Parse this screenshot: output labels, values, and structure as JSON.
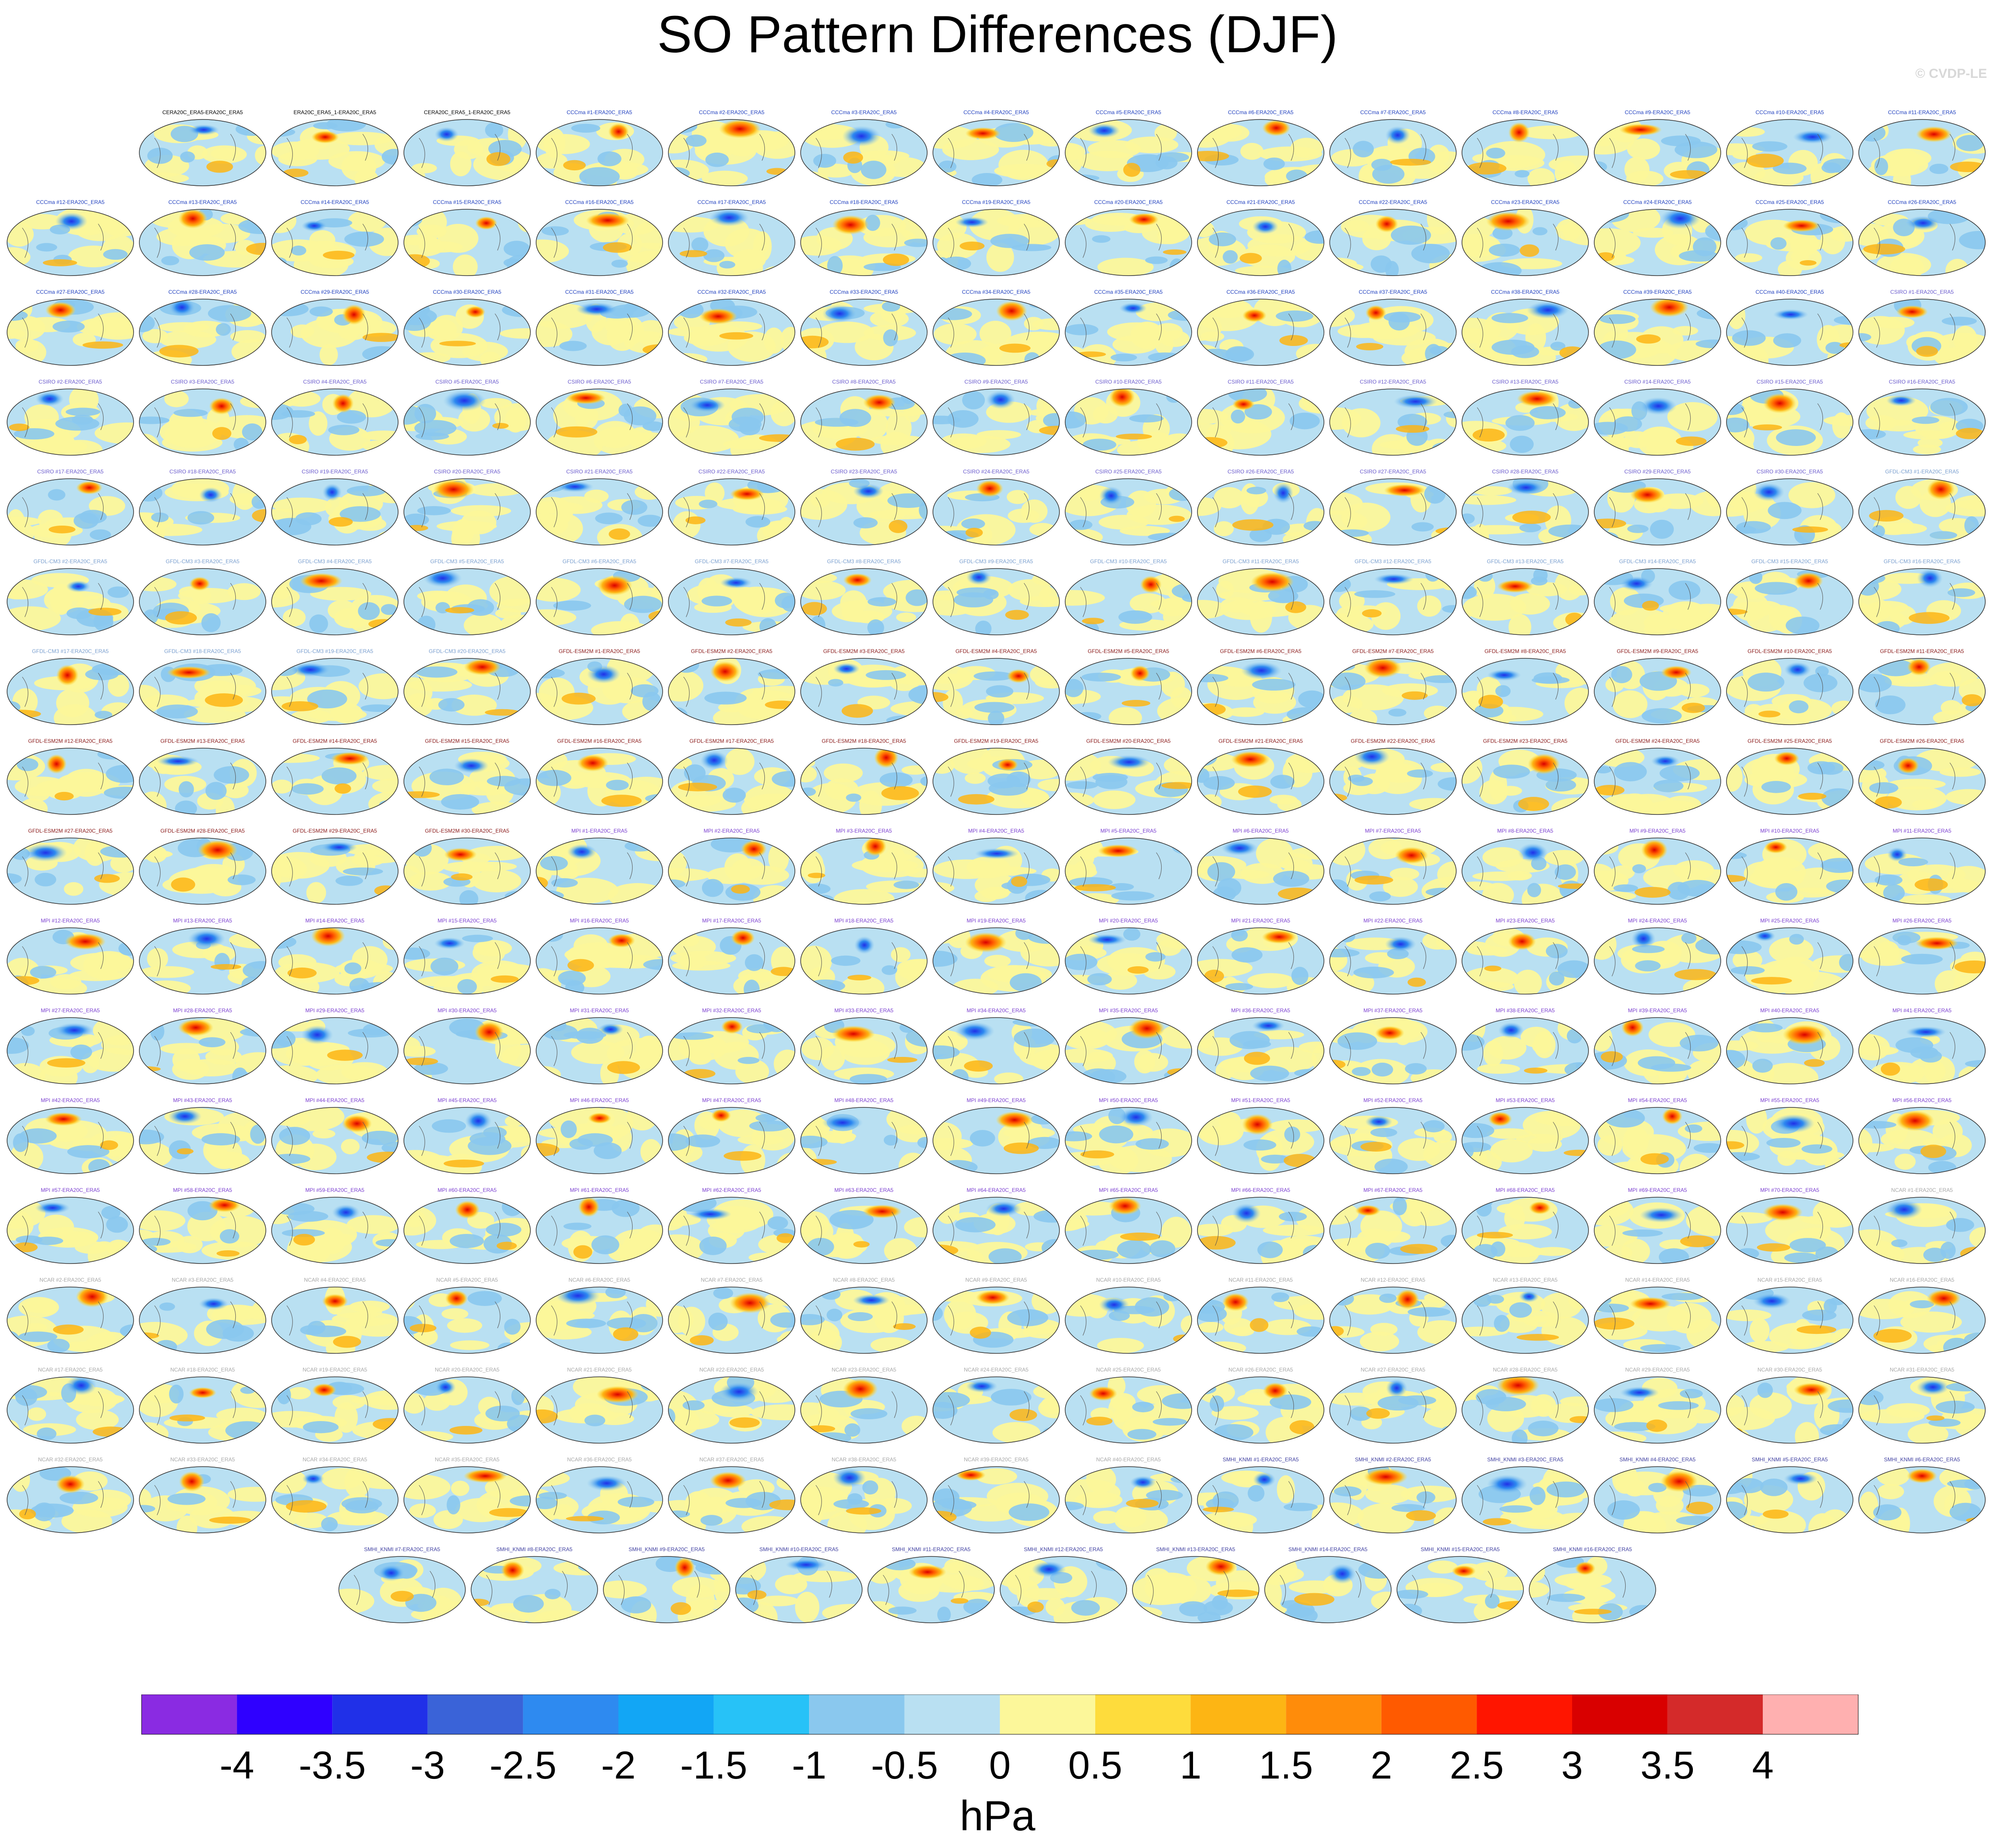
{
  "title": "SO Pattern Differences (DJF)",
  "watermark": "© CVDP-LE",
  "chart_data": {
    "type": "heatmap",
    "description_text": "",
    "panel_rows": [
      [
        "CERA20C_ERA5-ERA20C_ERA5",
        "ERA20C_ERA5_1-ERA20C_ERA5",
        "CERA20C_ERA5_1-ERA20C_ERA5",
        "CCCma #1-ERA20C_ERA5",
        "CCCma #2-ERA20C_ERA5",
        "CCCma #3-ERA20C_ERA5",
        "CCCma #4-ERA20C_ERA5",
        "CCCma #5-ERA20C_ERA5",
        "CCCma #6-ERA20C_ERA5",
        "CCCma #7-ERA20C_ERA5",
        "CCCma #8-ERA20C_ERA5",
        "CCCma #9-ERA20C_ERA5",
        "CCCma #10-ERA20C_ERA5",
        "CCCma #11-ERA20C_ERA5"
      ],
      [
        "CCCma #12-ERA20C_ERA5",
        "CCCma #13-ERA20C_ERA5",
        "CCCma #14-ERA20C_ERA5",
        "CCCma #15-ERA20C_ERA5",
        "CCCma #16-ERA20C_ERA5",
        "CCCma #17-ERA20C_ERA5",
        "CCCma #18-ERA20C_ERA5",
        "CCCma #19-ERA20C_ERA5",
        "CCCma #20-ERA20C_ERA5",
        "CCCma #21-ERA20C_ERA5",
        "CCCma #22-ERA20C_ERA5",
        "CCCma #23-ERA20C_ERA5",
        "CCCma #24-ERA20C_ERA5",
        "CCCma #25-ERA20C_ERA5",
        "CCCma #26-ERA20C_ERA5"
      ],
      [
        "CCCma #27-ERA20C_ERA5",
        "CCCma #28-ERA20C_ERA5",
        "CCCma #29-ERA20C_ERA5",
        "CCCma #30-ERA20C_ERA5",
        "CCCma #31-ERA20C_ERA5",
        "CCCma #32-ERA20C_ERA5",
        "CCCma #33-ERA20C_ERA5",
        "CCCma #34-ERA20C_ERA5",
        "CCCma #35-ERA20C_ERA5",
        "CCCma #36-ERA20C_ERA5",
        "CCCma #37-ERA20C_ERA5",
        "CCCma #38-ERA20C_ERA5",
        "CCCma #39-ERA20C_ERA5",
        "CCCma #40-ERA20C_ERA5",
        "CSIRO #1-ERA20C_ERA5"
      ],
      [
        "CSIRO #2-ERA20C_ERA5",
        "CSIRO #3-ERA20C_ERA5",
        "CSIRO #4-ERA20C_ERA5",
        "CSIRO #5-ERA20C_ERA5",
        "CSIRO #6-ERA20C_ERA5",
        "CSIRO #7-ERA20C_ERA5",
        "CSIRO #8-ERA20C_ERA5",
        "CSIRO #9-ERA20C_ERA5",
        "CSIRO #10-ERA20C_ERA5",
        "CSIRO #11-ERA20C_ERA5",
        "CSIRO #12-ERA20C_ERA5",
        "CSIRO #13-ERA20C_ERA5",
        "CSIRO #14-ERA20C_ERA5",
        "CSIRO #15-ERA20C_ERA5",
        "CSIRO #16-ERA20C_ERA5"
      ],
      [
        "CSIRO #17-ERA20C_ERA5",
        "CSIRO #18-ERA20C_ERA5",
        "CSIRO #19-ERA20C_ERA5",
        "CSIRO #20-ERA20C_ERA5",
        "CSIRO #21-ERA20C_ERA5",
        "CSIRO #22-ERA20C_ERA5",
        "CSIRO #23-ERA20C_ERA5",
        "CSIRO #24-ERA20C_ERA5",
        "CSIRO #25-ERA20C_ERA5",
        "CSIRO #26-ERA20C_ERA5",
        "CSIRO #27-ERA20C_ERA5",
        "CSIRO #28-ERA20C_ERA5",
        "CSIRO #29-ERA20C_ERA5",
        "CSIRO #30-ERA20C_ERA5",
        "GFDL-CM3 #1-ERA20C_ERA5"
      ],
      [
        "GFDL-CM3 #2-ERA20C_ERA5",
        "GFDL-CM3 #3-ERA20C_ERA5",
        "GFDL-CM3 #4-ERA20C_ERA5",
        "GFDL-CM3 #5-ERA20C_ERA5",
        "GFDL-CM3 #6-ERA20C_ERA5",
        "GFDL-CM3 #7-ERA20C_ERA5",
        "GFDL-CM3 #8-ERA20C_ERA5",
        "GFDL-CM3 #9-ERA20C_ERA5",
        "GFDL-CM3 #10-ERA20C_ERA5",
        "GFDL-CM3 #11-ERA20C_ERA5",
        "GFDL-CM3 #12-ERA20C_ERA5",
        "GFDL-CM3 #13-ERA20C_ERA5",
        "GFDL-CM3 #14-ERA20C_ERA5",
        "GFDL-CM3 #15-ERA20C_ERA5",
        "GFDL-CM3 #16-ERA20C_ERA5"
      ],
      [
        "GFDL-CM3 #17-ERA20C_ERA5",
        "GFDL-CM3 #18-ERA20C_ERA5",
        "GFDL-CM3 #19-ERA20C_ERA5",
        "GFDL-CM3 #20-ERA20C_ERA5",
        "GFDL-ESM2M #1-ERA20C_ERA5",
        "GFDL-ESM2M #2-ERA20C_ERA5",
        "GFDL-ESM2M #3-ERA20C_ERA5",
        "GFDL-ESM2M #4-ERA20C_ERA5",
        "GFDL-ESM2M #5-ERA20C_ERA5",
        "GFDL-ESM2M #6-ERA20C_ERA5",
        "GFDL-ESM2M #7-ERA20C_ERA5",
        "GFDL-ESM2M #8-ERA20C_ERA5",
        "GFDL-ESM2M #9-ERA20C_ERA5",
        "GFDL-ESM2M #10-ERA20C_ERA5",
        "GFDL-ESM2M #11-ERA20C_ERA5"
      ],
      [
        "GFDL-ESM2M #12-ERA20C_ERA5",
        "GFDL-ESM2M #13-ERA20C_ERA5",
        "GFDL-ESM2M #14-ERA20C_ERA5",
        "GFDL-ESM2M #15-ERA20C_ERA5",
        "GFDL-ESM2M #16-ERA20C_ERA5",
        "GFDL-ESM2M #17-ERA20C_ERA5",
        "GFDL-ESM2M #18-ERA20C_ERA5",
        "GFDL-ESM2M #19-ERA20C_ERA5",
        "GFDL-ESM2M #20-ERA20C_ERA5",
        "GFDL-ESM2M #21-ERA20C_ERA5",
        "GFDL-ESM2M #22-ERA20C_ERA5",
        "GFDL-ESM2M #23-ERA20C_ERA5",
        "GFDL-ESM2M #24-ERA20C_ERA5",
        "GFDL-ESM2M #25-ERA20C_ERA5",
        "GFDL-ESM2M #26-ERA20C_ERA5"
      ],
      [
        "GFDL-ESM2M #27-ERA20C_ERA5",
        "GFDL-ESM2M #28-ERA20C_ERA5",
        "GFDL-ESM2M #29-ERA20C_ERA5",
        "GFDL-ESM2M #30-ERA20C_ERA5",
        "MPI #1-ERA20C_ERA5",
        "MPI #2-ERA20C_ERA5",
        "MPI #3-ERA20C_ERA5",
        "MPI #4-ERA20C_ERA5",
        "MPI #5-ERA20C_ERA5",
        "MPI #6-ERA20C_ERA5",
        "MPI #7-ERA20C_ERA5",
        "MPI #8-ERA20C_ERA5",
        "MPI #9-ERA20C_ERA5",
        "MPI #10-ERA20C_ERA5",
        "MPI #11-ERA20C_ERA5"
      ],
      [
        "MPI #12-ERA20C_ERA5",
        "MPI #13-ERA20C_ERA5",
        "MPI #14-ERA20C_ERA5",
        "MPI #15-ERA20C_ERA5",
        "MPI #16-ERA20C_ERA5",
        "MPI #17-ERA20C_ERA5",
        "MPI #18-ERA20C_ERA5",
        "MPI #19-ERA20C_ERA5",
        "MPI #20-ERA20C_ERA5",
        "MPI #21-ERA20C_ERA5",
        "MPI #22-ERA20C_ERA5",
        "MPI #23-ERA20C_ERA5",
        "MPI #24-ERA20C_ERA5",
        "MPI #25-ERA20C_ERA5",
        "MPI #26-ERA20C_ERA5"
      ],
      [
        "MPI #27-ERA20C_ERA5",
        "MPI #28-ERA20C_ERA5",
        "MPI #29-ERA20C_ERA5",
        "MPI #30-ERA20C_ERA5",
        "MPI #31-ERA20C_ERA5",
        "MPI #32-ERA20C_ERA5",
        "MPI #33-ERA20C_ERA5",
        "MPI #34-ERA20C_ERA5",
        "MPI #35-ERA20C_ERA5",
        "MPI #36-ERA20C_ERA5",
        "MPI #37-ERA20C_ERA5",
        "MPI #38-ERA20C_ERA5",
        "MPI #39-ERA20C_ERA5",
        "MPI #40-ERA20C_ERA5",
        "MPI #41-ERA20C_ERA5"
      ],
      [
        "MPI #42-ERA20C_ERA5",
        "MPI #43-ERA20C_ERA5",
        "MPI #44-ERA20C_ERA5",
        "MPI #45-ERA20C_ERA5",
        "MPI #46-ERA20C_ERA5",
        "MPI #47-ERA20C_ERA5",
        "MPI #48-ERA20C_ERA5",
        "MPI #49-ERA20C_ERA5",
        "MPI #50-ERA20C_ERA5",
        "MPI #51-ERA20C_ERA5",
        "MPI #52-ERA20C_ERA5",
        "MPI #53-ERA20C_ERA5",
        "MPI #54-ERA20C_ERA5",
        "MPI #55-ERA20C_ERA5",
        "MPI #56-ERA20C_ERA5"
      ],
      [
        "MPI #57-ERA20C_ERA5",
        "MPI #58-ERA20C_ERA5",
        "MPI #59-ERA20C_ERA5",
        "MPI #60-ERA20C_ERA5",
        "MPI #61-ERA20C_ERA5",
        "MPI #62-ERA20C_ERA5",
        "MPI #63-ERA20C_ERA5",
        "MPI #64-ERA20C_ERA5",
        "MPI #65-ERA20C_ERA5",
        "MPI #66-ERA20C_ERA5",
        "MPI #67-ERA20C_ERA5",
        "MPI #68-ERA20C_ERA5",
        "MPI #69-ERA20C_ERA5",
        "MPI #70-ERA20C_ERA5",
        "NCAR #1-ERA20C_ERA5"
      ],
      [
        "NCAR #2-ERA20C_ERA5",
        "NCAR #3-ERA20C_ERA5",
        "NCAR #4-ERA20C_ERA5",
        "NCAR #5-ERA20C_ERA5",
        "NCAR #6-ERA20C_ERA5",
        "NCAR #7-ERA20C_ERA5",
        "NCAR #8-ERA20C_ERA5",
        "NCAR #9-ERA20C_ERA5",
        "NCAR #10-ERA20C_ERA5",
        "NCAR #11-ERA20C_ERA5",
        "NCAR #12-ERA20C_ERA5",
        "NCAR #13-ERA20C_ERA5",
        "NCAR #14-ERA20C_ERA5",
        "NCAR #15-ERA20C_ERA5",
        "NCAR #16-ERA20C_ERA5"
      ],
      [
        "NCAR #17-ERA20C_ERA5",
        "NCAR #18-ERA20C_ERA5",
        "NCAR #19-ERA20C_ERA5",
        "NCAR #20-ERA20C_ERA5",
        "NCAR #21-ERA20C_ERA5",
        "NCAR #22-ERA20C_ERA5",
        "NCAR #23-ERA20C_ERA5",
        "NCAR #24-ERA20C_ERA5",
        "NCAR #25-ERA20C_ERA5",
        "NCAR #26-ERA20C_ERA5",
        "NCAR #27-ERA20C_ERA5",
        "NCAR #28-ERA20C_ERA5",
        "NCAR #29-ERA20C_ERA5",
        "NCAR #30-ERA20C_ERA5",
        "NCAR #31-ERA20C_ERA5"
      ],
      [
        "NCAR #32-ERA20C_ERA5",
        "NCAR #33-ERA20C_ERA5",
        "NCAR #34-ERA20C_ERA5",
        "NCAR #35-ERA20C_ERA5",
        "NCAR #36-ERA20C_ERA5",
        "NCAR #37-ERA20C_ERA5",
        "NCAR #38-ERA20C_ERA5",
        "NCAR #39-ERA20C_ERA5",
        "NCAR #40-ERA20C_ERA5",
        "SMHI_KNMI #1-ERA20C_ERA5",
        "SMHI_KNMI #2-ERA20C_ERA5",
        "SMHI_KNMI #3-ERA20C_ERA5",
        "SMHI_KNMI #4-ERA20C_ERA5",
        "SMHI_KNMI #5-ERA20C_ERA5",
        "SMHI_KNMI #6-ERA20C_ERA5"
      ],
      [
        "SMHI_KNMI #7-ERA20C_ERA5",
        "SMHI_KNMI #8-ERA20C_ERA5",
        "SMHI_KNMI #9-ERA20C_ERA5",
        "SMHI_KNMI #10-ERA20C_ERA5",
        "SMHI_KNMI #11-ERA20C_ERA5",
        "SMHI_KNMI #12-ERA20C_ERA5",
        "SMHI_KNMI #13-ERA20C_ERA5",
        "SMHI_KNMI #14-ERA20C_ERA5",
        "SMHI_KNMI #15-ERA20C_ERA5",
        "SMHI_KNMI #16-ERA20C_ERA5"
      ]
    ],
    "panel_style": {
      "CERA20C": "#000000",
      "ERA20C": "#000000",
      "CCCma": "#1f3fbf",
      "CSIRO": "#6a5acd",
      "GFDL-CM3": "#7a9fcf",
      "GFDL-ESM2M": "#8b1a1a",
      "MPI": "#7b3fd0",
      "NCAR": "#a8a8a8",
      "SMHI_KNMI": "#3f3fa0"
    },
    "colorbar": {
      "levels": [
        -4,
        -3.5,
        -3,
        -2.5,
        -2,
        -1.5,
        -1,
        -0.5,
        0,
        0.5,
        1,
        1.5,
        2,
        2.5,
        3,
        3.5,
        4
      ],
      "tick_labels": [
        "-4",
        "-3.5",
        "-3",
        "-2.5",
        "-2",
        "-1.5",
        "-1",
        "-0.5",
        "0",
        "0.5",
        "1",
        "1.5",
        "2",
        "2.5",
        "3",
        "3.5",
        "4"
      ],
      "colors": [
        "#8a2be2",
        "#2f00ff",
        "#2030e8",
        "#3a63d8",
        "#2e8af0",
        "#12a6f5",
        "#27c2f7",
        "#8ac8ee",
        "#b9e0f2",
        "#fcf79a",
        "#fedc3c",
        "#fdb514",
        "#ff8c0a",
        "#ff5a00",
        "#ff1500",
        "#d90000",
        "#d42a2a",
        "#ffb0b0"
      ],
      "units": "hPa"
    }
  }
}
